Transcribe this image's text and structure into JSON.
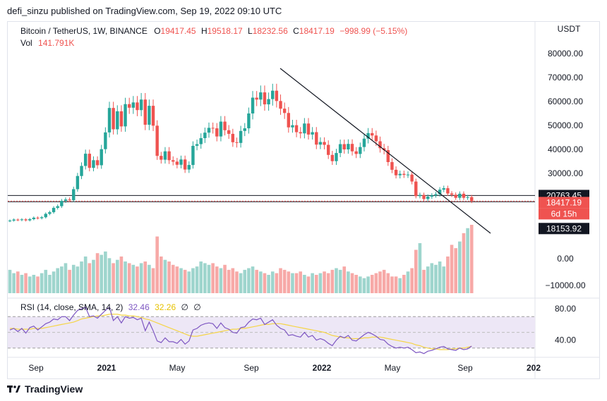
{
  "header": {
    "publisher": "defi_sinzu published on TradingView.com, Sep 19, 2022 09:10 UTC"
  },
  "legend": {
    "symbol": "Bitcoin / TetherUS, 1W, BINANCE",
    "open_label": "O",
    "open": "19417.45",
    "high_label": "H",
    "high": "19518.17",
    "low_label": "L",
    "low": "18232.56",
    "close_label": "C",
    "close": "18417.19",
    "change": "−998.99 (−5.15%)",
    "vol_label": "Vol",
    "vol_value": "141.791K"
  },
  "rsi_legend": {
    "label": "RSI (14, close, SMA, 14, 2)",
    "rsi": "32.46",
    "sma": "32.26",
    "extra1": "∅",
    "extra2": "∅"
  },
  "colors": {
    "up": "#26a69a",
    "down": "#ef5350",
    "vol_up": "#9ed5cd",
    "vol_down": "#f7a9a7",
    "rsi": "#7e57c2",
    "rsi_sma": "#f5d547",
    "rsi_band": "#ede7f6"
  },
  "chart_data": [
    {
      "type": "candlestick",
      "title": "Bitcoin / TetherUS, 1W, BINANCE",
      "ylabel": "USDT",
      "ylim": [
        5000,
        85000
      ],
      "y_ticks": [
        "80000.00",
        "70000.00",
        "60000.00",
        "50000.00",
        "40000.00",
        "30000.00"
      ],
      "x_ticks": [
        "Sep",
        "2021",
        "May",
        "Sep",
        "2022",
        "May",
        "Sep",
        "202"
      ],
      "price_tags": [
        {
          "label": "20763.45",
          "style": "dark"
        },
        {
          "label": "18417.19",
          "style": "red"
        },
        {
          "label": "6d 15h",
          "style": "red"
        },
        {
          "label": "18153.92",
          "style": "dark"
        }
      ],
      "horizontal_lines": [
        20763.45,
        18153.92
      ],
      "trendline": {
        "from_date": "Nov 2021",
        "from_price": 69000,
        "to_date": "Oct 2022",
        "to_price": 17600
      },
      "close_series": [
        10300,
        10700,
        10500,
        10800,
        10400,
        10900,
        11500,
        11300,
        11700,
        13100,
        13800,
        15600,
        16300,
        18500,
        19100,
        18800,
        23400,
        28900,
        33100,
        38200,
        32300,
        35500,
        33400,
        40100,
        47100,
        57300,
        48400,
        55900,
        49600,
        58900,
        57400,
        59600,
        56400,
        60800,
        50300,
        58200,
        49900,
        37300,
        35700,
        39200,
        35500,
        34900,
        33600,
        35800,
        31600,
        33500,
        41500,
        42200,
        44700,
        47000,
        49000,
        48800,
        45400,
        51600,
        48000,
        46500,
        43000,
        42700,
        47700,
        48800,
        55000,
        61600,
        60800,
        63800,
        58800,
        61000,
        64500,
        60200,
        57000,
        55200,
        49200,
        50100,
        47200,
        46700,
        50800,
        46200,
        47200,
        42000,
        43100,
        41900,
        37700,
        35100,
        38500,
        42200,
        40000,
        42300,
        39200,
        38100,
        41000,
        44500,
        46800,
        45800,
        43400,
        40500,
        39700,
        34700,
        31500,
        29200,
        29800,
        29400,
        29500,
        26600,
        20500,
        21000,
        19300,
        20300,
        20800,
        21300,
        23200,
        23800,
        21600,
        21100,
        19800,
        21500,
        19800,
        20100,
        18417
      ],
      "volume_series_note": "relative weekly volume, arbitrary units",
      "volume_series": [
        14,
        12,
        13,
        11,
        12,
        10,
        11,
        10,
        12,
        14,
        11,
        13,
        15,
        16,
        18,
        14,
        17,
        16,
        19,
        22,
        18,
        20,
        24,
        23,
        25,
        21,
        18,
        20,
        22,
        19,
        18,
        17,
        16,
        18,
        19,
        17,
        15,
        34,
        22,
        20,
        19,
        17,
        16,
        15,
        14,
        13,
        15,
        16,
        19,
        18,
        17,
        18,
        16,
        15,
        17,
        14,
        15,
        13,
        12,
        14,
        15,
        16,
        14,
        13,
        12,
        11,
        13,
        12,
        15,
        14,
        13,
        12,
        12,
        13,
        11,
        10,
        12,
        11,
        12,
        13,
        12,
        14,
        15,
        14,
        16,
        13,
        12,
        11,
        10,
        9,
        10,
        11,
        12,
        13,
        14,
        12,
        10,
        10,
        9,
        11,
        13,
        15,
        26,
        30,
        14,
        16,
        18,
        17,
        19,
        16,
        22,
        29,
        27,
        31,
        36,
        39,
        41
      ],
      "rsi": {
        "ylim": [
          20,
          90
        ],
        "y_ticks": [
          "80.00",
          "40.00"
        ],
        "levels": [
          70,
          30
        ],
        "rsi_series": [
          53,
          55,
          51,
          55,
          49,
          56,
          58,
          53,
          57,
          61,
          63,
          67,
          66,
          70,
          70,
          65,
          72,
          78,
          80,
          82,
          70,
          71,
          68,
          73,
          78,
          82,
          65,
          70,
          62,
          70,
          68,
          69,
          66,
          68,
          52,
          63,
          52,
          39,
          37,
          43,
          38,
          38,
          36,
          41,
          35,
          39,
          53,
          55,
          59,
          61,
          62,
          61,
          55,
          62,
          56,
          54,
          50,
          49,
          56,
          57,
          63,
          67,
          66,
          68,
          60,
          63,
          66,
          59,
          55,
          53,
          46,
          47,
          45,
          44,
          50,
          44,
          46,
          40,
          42,
          40,
          36,
          33,
          40,
          45,
          43,
          46,
          40,
          39,
          43,
          47,
          50,
          48,
          45,
          41,
          40,
          35,
          32,
          30,
          31,
          30,
          31,
          28,
          24,
          25,
          23,
          26,
          27,
          29,
          31,
          32,
          29,
          28,
          27,
          30,
          28,
          29,
          32.46
        ],
        "sma_series": [
          55,
          55,
          54,
          54,
          54,
          54,
          55,
          55,
          55,
          56,
          57,
          58,
          59,
          60,
          61,
          62,
          63,
          65,
          67,
          68,
          69,
          70,
          71,
          71,
          72,
          73,
          73,
          73,
          72,
          72,
          71,
          71,
          70,
          69,
          67,
          66,
          64,
          62,
          60,
          58,
          56,
          54,
          52,
          50,
          48,
          46,
          45,
          45,
          46,
          47,
          48,
          49,
          50,
          51,
          52,
          53,
          54,
          54,
          55,
          55,
          56,
          57,
          58,
          59,
          60,
          60,
          61,
          61,
          61,
          60,
          59,
          58,
          57,
          56,
          55,
          54,
          53,
          52,
          51,
          50,
          48,
          46,
          45,
          44,
          43,
          43,
          42,
          42,
          42,
          43,
          43,
          44,
          44,
          44,
          43,
          42,
          41,
          40,
          39,
          38,
          37,
          36,
          34,
          33,
          31,
          30,
          29,
          29,
          28,
          28,
          28,
          29,
          29,
          30,
          30,
          31,
          32.26
        ]
      }
    }
  ]
}
